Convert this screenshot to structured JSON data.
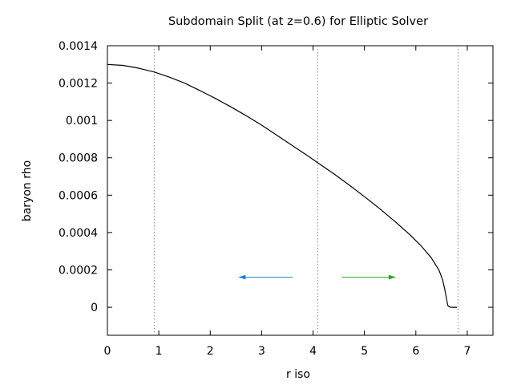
{
  "chart_data": {
    "type": "line",
    "title": "Subdomain Split (at z=0.6) for Elliptic Solver",
    "xlabel": "r iso",
    "ylabel": "baryon rho",
    "xlim": [
      0,
      7.5
    ],
    "ylim": [
      -0.00015,
      0.0014
    ],
    "xticks": [
      {
        "value": 0,
        "label": "0"
      },
      {
        "value": 1,
        "label": "1"
      },
      {
        "value": 2,
        "label": "2"
      },
      {
        "value": 3,
        "label": "3"
      },
      {
        "value": 4,
        "label": "4"
      },
      {
        "value": 5,
        "label": "5"
      },
      {
        "value": 6,
        "label": "6"
      },
      {
        "value": 7,
        "label": "7"
      }
    ],
    "yticks": [
      {
        "value": 0,
        "label": "0"
      },
      {
        "value": 0.0002,
        "label": "0.0002"
      },
      {
        "value": 0.0004,
        "label": "0.0004"
      },
      {
        "value": 0.0006,
        "label": "0.0006"
      },
      {
        "value": 0.0008,
        "label": "0.0008"
      },
      {
        "value": 0.001,
        "label": "0.001"
      },
      {
        "value": 0.0012,
        "label": "0.0012"
      },
      {
        "value": 0.0014,
        "label": "0.0014"
      }
    ],
    "grid": false,
    "series": [
      {
        "name": "baryon rho",
        "color": "#000000",
        "x": [
          0,
          0.3,
          0.6,
          0.9,
          1.2,
          1.5,
          1.8,
          2.1,
          2.4,
          2.7,
          3.0,
          3.3,
          3.6,
          3.9,
          4.1,
          4.4,
          4.7,
          5.0,
          5.3,
          5.6,
          5.9,
          6.1,
          6.3,
          6.45,
          6.52,
          6.56,
          6.6,
          6.62,
          6.65,
          6.68,
          6.8
        ],
        "y": [
          0.0013,
          0.001295,
          0.00128,
          0.00126,
          0.001232,
          0.0012,
          0.00116,
          0.001118,
          0.001073,
          0.001025,
          0.000975,
          0.00092,
          0.000865,
          0.00081,
          0.000772,
          0.000715,
          0.000655,
          0.000592,
          0.000527,
          0.000458,
          0.000384,
          0.000329,
          0.000265,
          0.000198,
          0.000148,
          0.0001,
          4e-05,
          1e-05,
          2e-06,
          0.0,
          0.0
        ]
      }
    ],
    "subdomain_boundaries": [
      {
        "x": 0.91,
        "style": "dotted",
        "color": "#888888"
      },
      {
        "x": 4.09,
        "style": "dotted",
        "color": "#888888"
      },
      {
        "x": 6.82,
        "style": "dotted",
        "color": "#888888"
      }
    ],
    "arrows": [
      {
        "from": [
          3.6,
          0.000161
        ],
        "to": [
          2.56,
          0.000161
        ],
        "color": "#1e7fd1"
      },
      {
        "from": [
          4.56,
          0.000161
        ],
        "to": [
          5.6,
          0.000161
        ],
        "color": "#1faa1f"
      }
    ]
  }
}
